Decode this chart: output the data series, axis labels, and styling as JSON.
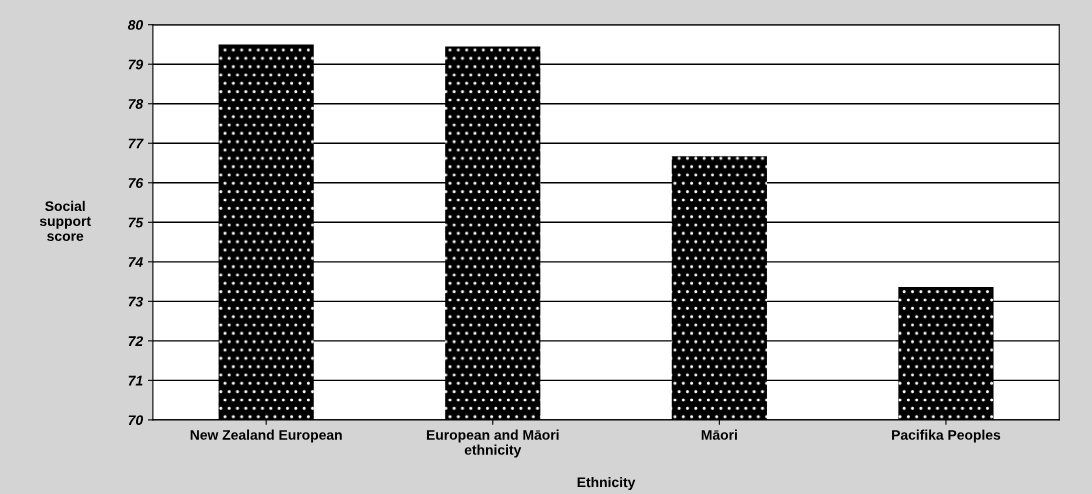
{
  "chart_data": {
    "type": "bar",
    "xlabel": "Ethnicity",
    "ylabel": "Social\nsupport\nscore",
    "categories": [
      "New Zealand European",
      "European and Māori\nethnicity",
      "Māori",
      "Pacifika Peoples"
    ],
    "values": [
      79.5,
      79.45,
      76.67,
      73.36
    ],
    "color": "#000000",
    "ylim": [
      70,
      80
    ],
    "yticks": [
      70,
      71,
      72,
      73,
      74,
      75,
      76,
      77,
      78,
      79,
      80
    ],
    "grid": "y",
    "legend": false
  }
}
